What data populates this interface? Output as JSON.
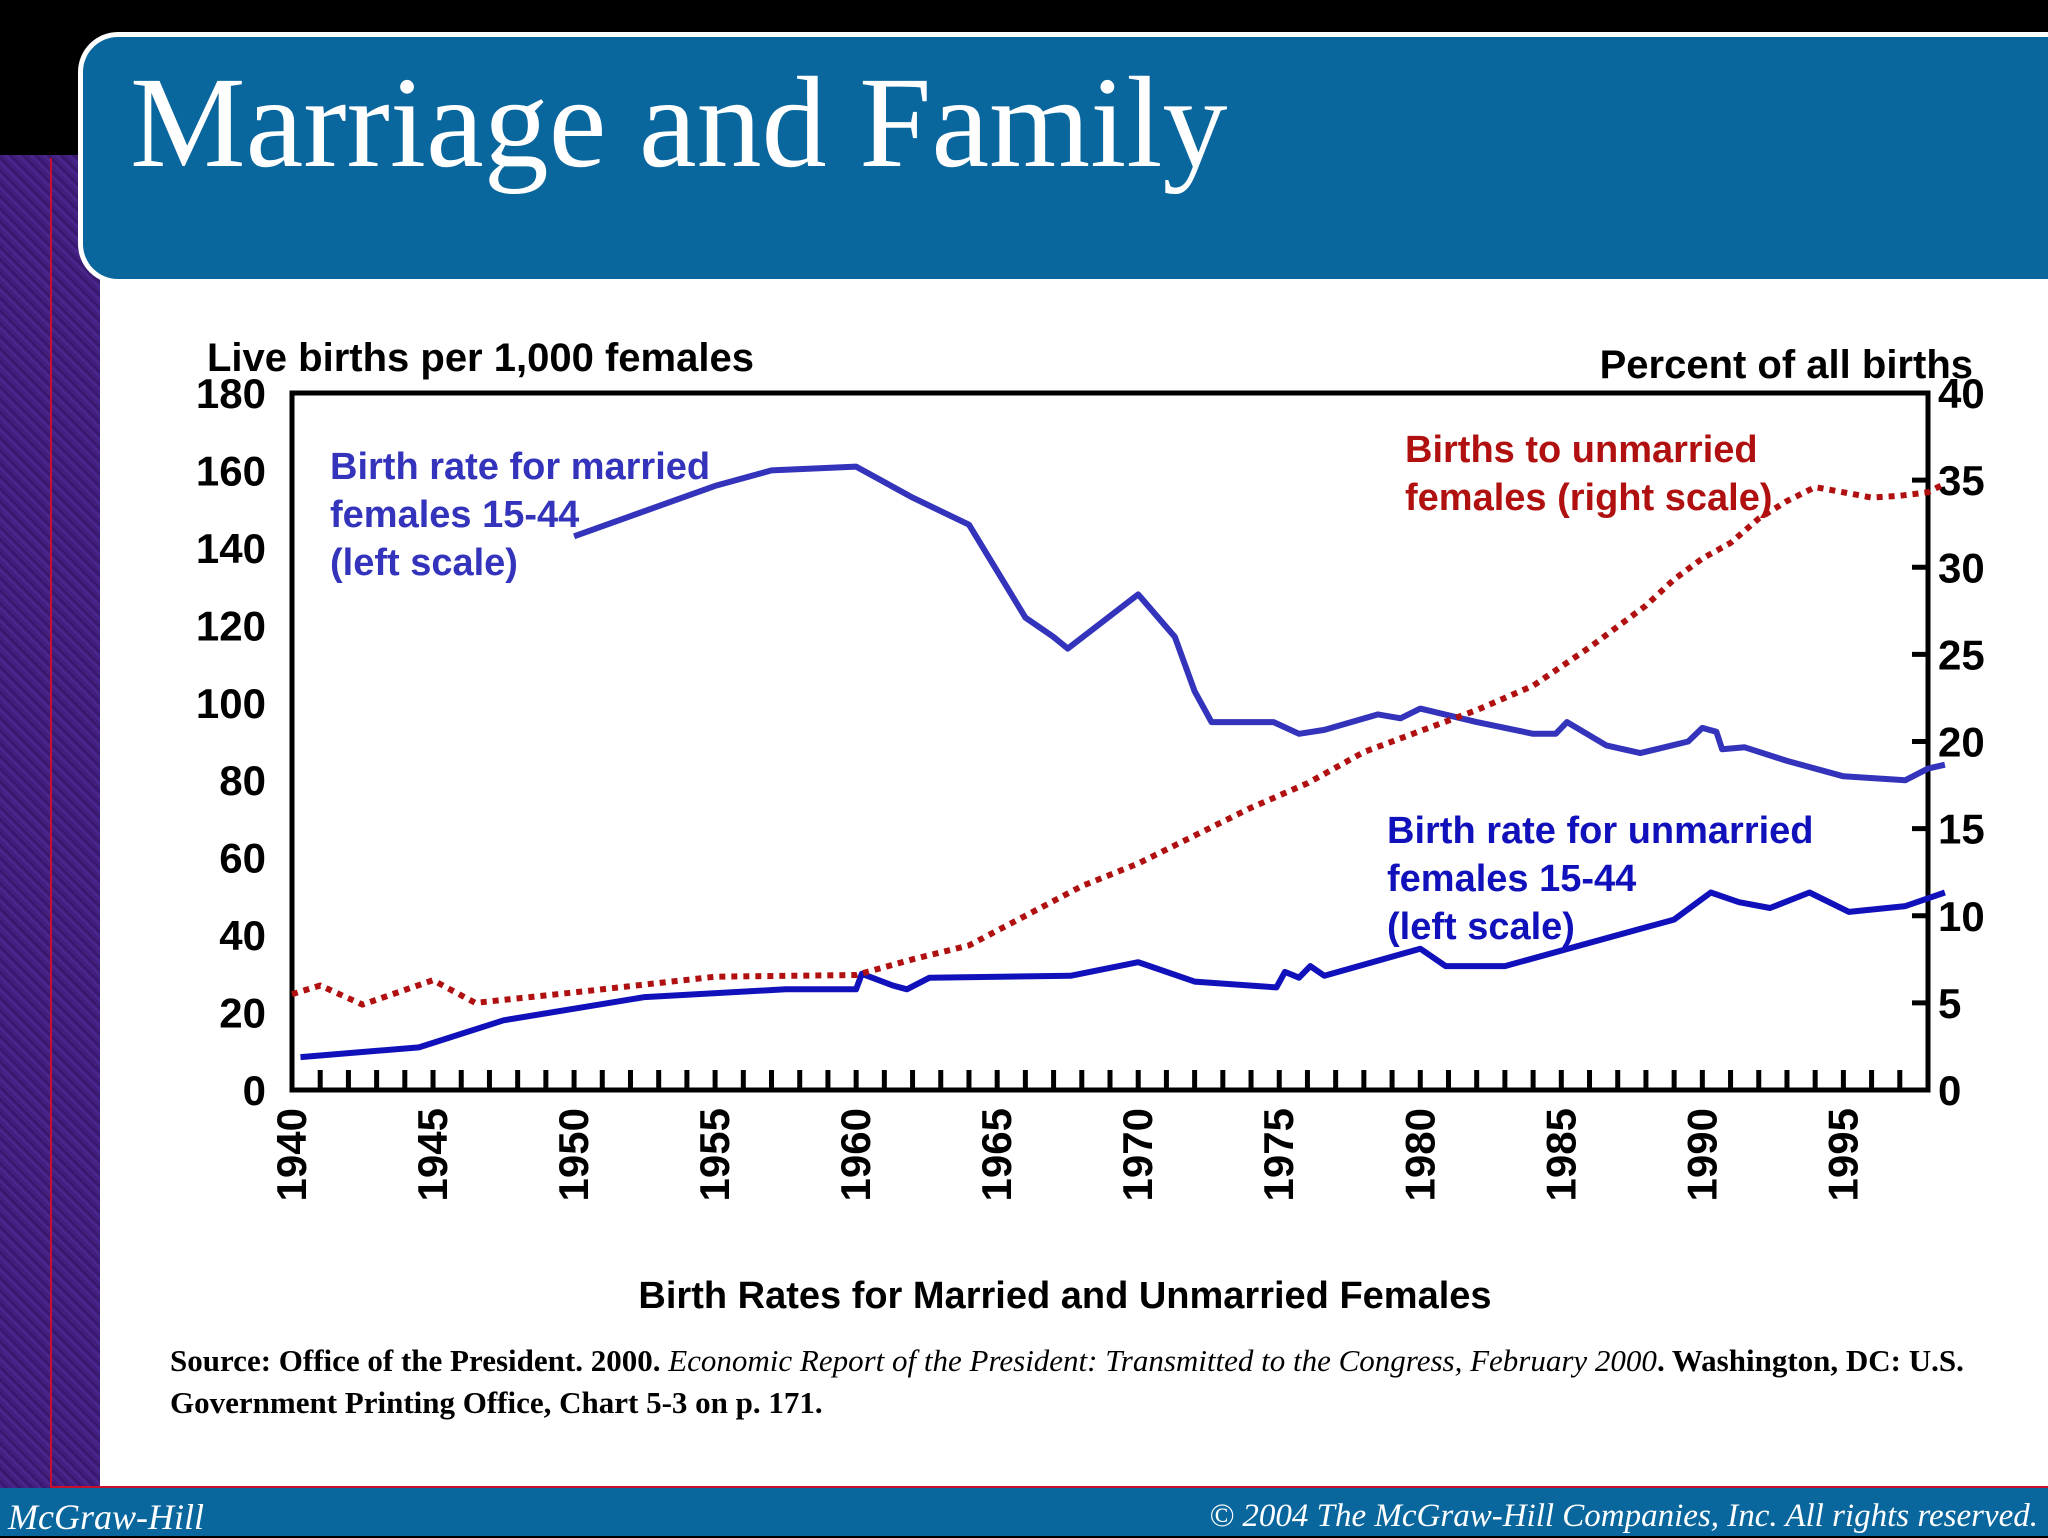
{
  "slide": {
    "title": "Marriage and Family",
    "footer_left": "McGraw-Hill",
    "footer_right": "© 2004 The McGraw-Hill Companies, Inc. All rights reserved.",
    "caption": "Birth Rates for Married and Unmarried Females",
    "source_prefix": "Source: Office of the President. 2000. ",
    "source_title": "Economic Report of the President: Transmitted to the Congress, February 2000",
    "source_suffix": ". Washington, DC: U.S. Government Printing Office, Chart 5-3 on p. 171."
  },
  "chart_data": {
    "type": "line",
    "title": "",
    "left_axis_label": "Live births per 1,000 females",
    "right_axis_label": "Percent of all births",
    "xlim": [
      1940,
      1998
    ],
    "ylim_left": [
      0,
      180
    ],
    "ylim_right": [
      0,
      40
    ],
    "left_ticks": [
      0,
      20,
      40,
      60,
      80,
      100,
      120,
      140,
      160,
      180
    ],
    "right_ticks": [
      0,
      5,
      10,
      15,
      20,
      25,
      30,
      35,
      40
    ],
    "x_tick_labels": [
      1940,
      1945,
      1950,
      1955,
      1960,
      1965,
      1970,
      1975,
      1980,
      1985,
      1990,
      1995
    ],
    "grid": false,
    "colors": {
      "married": "#3333bb",
      "unmarried_rate": "#1111bb",
      "unmarried_share": "#b01010"
    },
    "series": [
      {
        "name": "Birth rate for married females 15-44 (left scale)",
        "label_lines": [
          "Birth rate for married",
          "females 15-44",
          "(left scale)"
        ],
        "axis": "left",
        "style": "solid",
        "color_key": "married",
        "x": [
          1950,
          1955,
          1957,
          1960,
          1962,
          1964,
          1966,
          1967,
          1967.5,
          1970,
          1971.3,
          1972,
          1972.6,
          1974.8,
          1975.7,
          1976.6,
          1978.5,
          1979.3,
          1980,
          1982,
          1984,
          1984.8,
          1985.2,
          1986.6,
          1987.8,
          1989.5,
          1990,
          1990.5,
          1990.7,
          1991.5,
          1993,
          1995,
          1997.2,
          1998,
          1998.6
        ],
        "y": [
          143,
          156,
          160,
          161,
          153,
          146,
          122,
          117,
          114,
          128,
          117,
          103,
          95,
          95,
          92,
          93,
          97,
          96,
          98.5,
          95,
          92,
          92,
          95,
          89,
          87,
          90,
          93.5,
          92.5,
          88,
          88.5,
          85,
          81,
          80,
          83,
          84
        ]
      },
      {
        "name": "Birth rate for unmarried females 15-44 (left scale)",
        "label_lines": [
          "Birth rate for unmarried",
          "females 15-44",
          "(left scale)"
        ],
        "axis": "left",
        "style": "solid",
        "color_key": "unmarried_rate",
        "x": [
          1940.3,
          1944.5,
          1947.5,
          1952.5,
          1957.5,
          1960,
          1960.2,
          1961.3,
          1961.8,
          1962.6,
          1967.6,
          1970,
          1972,
          1974.9,
          1975.2,
          1975.7,
          1976.1,
          1976.6,
          1980,
          1980.9,
          1983,
          1989,
          1990.3,
          1991.3,
          1992.4,
          1993.8,
          1995.2,
          1997.2,
          1998.6
        ],
        "y": [
          8.5,
          11,
          18,
          24,
          26,
          26,
          30,
          27,
          26,
          29,
          29.5,
          33,
          28,
          26.5,
          30.5,
          29,
          32,
          29.5,
          36.5,
          32,
          32,
          44,
          51,
          48.5,
          47,
          51,
          46,
          47.5,
          51
        ]
      },
      {
        "name": "Births to unmarried females (right scale)",
        "label_lines": [
          "Births to unmarried",
          "females (right scale)"
        ],
        "axis": "right",
        "style": "dotted",
        "color_key": "unmarried_share",
        "x": [
          1940,
          1941,
          1942.5,
          1945,
          1946.5,
          1950,
          1955,
          1960,
          1962,
          1964,
          1966,
          1968,
          1970,
          1972,
          1974,
          1976,
          1978,
          1980,
          1982,
          1984,
          1986,
          1988,
          1989,
          1990,
          1991,
          1992,
          1993,
          1994,
          1995,
          1996,
          1997,
          1998,
          1998.6
        ],
        "y": [
          5.5,
          6,
          4.9,
          6.3,
          5,
          5.6,
          6.5,
          6.6,
          7.5,
          8.3,
          10,
          11.7,
          13,
          14.6,
          16.2,
          17.6,
          19.4,
          20.6,
          21.8,
          23.2,
          25.4,
          27.8,
          29.3,
          30.5,
          31.4,
          32.8,
          33.8,
          34.6,
          34.3,
          34,
          34.1,
          34.3,
          34.8
        ]
      }
    ]
  }
}
